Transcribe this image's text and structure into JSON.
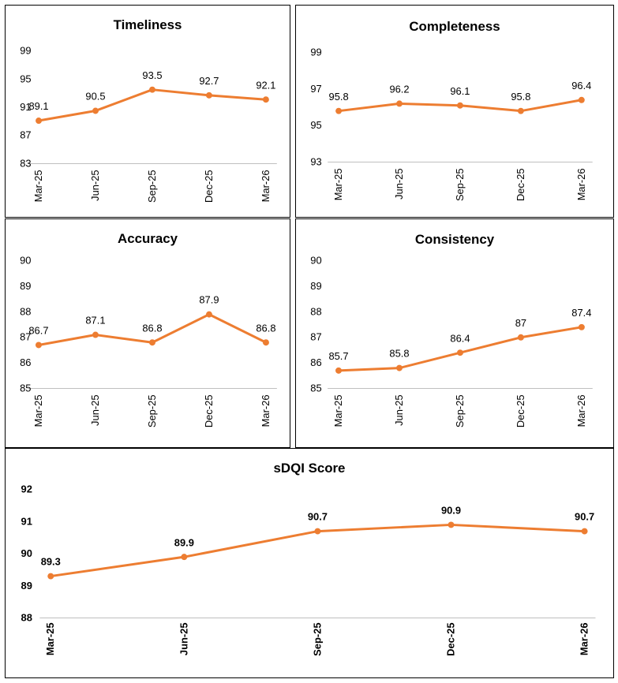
{
  "colors": {
    "line": "#ed7d31",
    "grid": "#d9d9d9",
    "axis": "#bfbfbf"
  },
  "chart_data": [
    {
      "type": "line",
      "title": "Timeliness",
      "categories": [
        "Mar-25",
        "Jun-25",
        "Sep-25",
        "Dec-25",
        "Mar-26"
      ],
      "values": [
        89.1,
        90.5,
        93.5,
        92.7,
        92.1
      ],
      "value_labels": [
        "89.1",
        "90.5",
        "93.5",
        "92.7",
        "92.1"
      ],
      "yticks": [
        "83",
        "87",
        "91",
        "95",
        "99"
      ],
      "ylim": [
        83,
        99
      ],
      "grid": false
    },
    {
      "type": "line",
      "title": "Completeness",
      "categories": [
        "Mar-25",
        "Jun-25",
        "Sep-25",
        "Dec-25",
        "Mar-26"
      ],
      "values": [
        95.8,
        96.2,
        96.1,
        95.8,
        96.4
      ],
      "value_labels": [
        "95.8",
        "96.2",
        "96.1",
        "95.8",
        "96.4"
      ],
      "yticks": [
        "93",
        "95",
        "97",
        "99"
      ],
      "ylim": [
        93,
        99
      ],
      "grid": false
    },
    {
      "type": "line",
      "title": "Accuracy",
      "categories": [
        "Mar-25",
        "Jun-25",
        "Sep-25",
        "Dec-25",
        "Mar-26"
      ],
      "values": [
        86.7,
        87.1,
        86.8,
        87.9,
        86.8
      ],
      "value_labels": [
        "86.7",
        "87.1",
        "86.8",
        "87.9",
        "86.8"
      ],
      "yticks": [
        "85",
        "86",
        "87",
        "88",
        "89",
        "90"
      ],
      "ylim": [
        85,
        90
      ],
      "grid": false
    },
    {
      "type": "line",
      "title": "Consistency",
      "categories": [
        "Mar-25",
        "Jun-25",
        "Sep-25",
        "Dec-25",
        "Mar-26"
      ],
      "values": [
        85.7,
        85.8,
        86.4,
        87,
        87.4
      ],
      "value_labels": [
        "85.7",
        "85.8",
        "86.4",
        "87",
        "87.4"
      ],
      "yticks": [
        "85",
        "86",
        "87",
        "88",
        "89",
        "90"
      ],
      "ylim": [
        85,
        90
      ],
      "grid": false
    },
    {
      "type": "line",
      "title": "sDQI Score",
      "categories": [
        "Mar-25",
        "Jun-25",
        "Sep-25",
        "Dec-25",
        "Mar-26"
      ],
      "values": [
        89.3,
        89.9,
        90.7,
        90.9,
        90.7
      ],
      "value_labels": [
        "89.3",
        "89.9",
        "90.7",
        "90.9",
        "90.7"
      ],
      "yticks": [
        "88",
        "89",
        "90",
        "91",
        "92"
      ],
      "ylim": [
        88,
        92
      ],
      "grid": false,
      "bold_labels": true
    }
  ]
}
